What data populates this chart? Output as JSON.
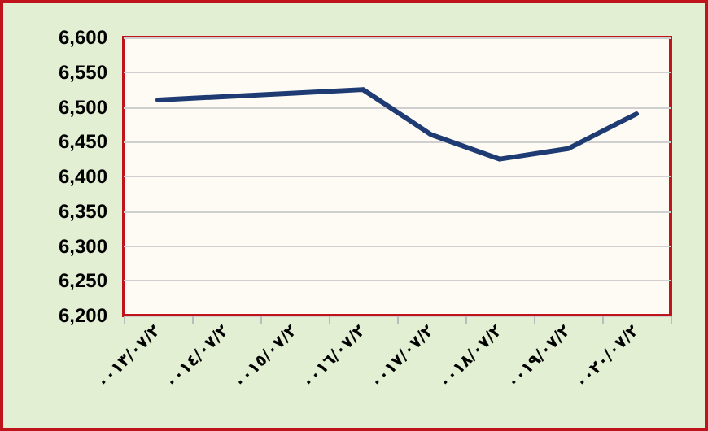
{
  "chart_data": {
    "type": "line",
    "categories": [
      "٠٠١٣/٠٧/٢",
      "٠٠١٤/٠٧/٢",
      "٠٠١٥/٠٧/٢",
      "٠٠١٦/٠٧/٢",
      "٠٠١٧/٠٧/٢",
      "٠٠١٨/٠٧/٢",
      "٠٠١٩/٠٧/٢",
      "٠٠٢٠/٠٧/٢"
    ],
    "series": [
      {
        "color": "#1f3b73",
        "values": [
          6510,
          6515,
          6520,
          6525,
          6460,
          6425,
          6440,
          6490
        ]
      }
    ],
    "ylim": [
      6200,
      6600
    ],
    "yticks": [
      {
        "value": 6200,
        "label": "6,200"
      },
      {
        "value": 6250,
        "label": "6,250"
      },
      {
        "value": 6300,
        "label": "6,300"
      },
      {
        "value": 6350,
        "label": "6,350"
      },
      {
        "value": 6400,
        "label": "6,400"
      },
      {
        "value": 6450,
        "label": "6,450"
      },
      {
        "value": 6500,
        "label": "6,500"
      },
      {
        "value": 6550,
        "label": "6,550"
      },
      {
        "value": 6600,
        "label": "6,600"
      }
    ],
    "grid": "y",
    "marker": "none",
    "line_style": "solid"
  }
}
